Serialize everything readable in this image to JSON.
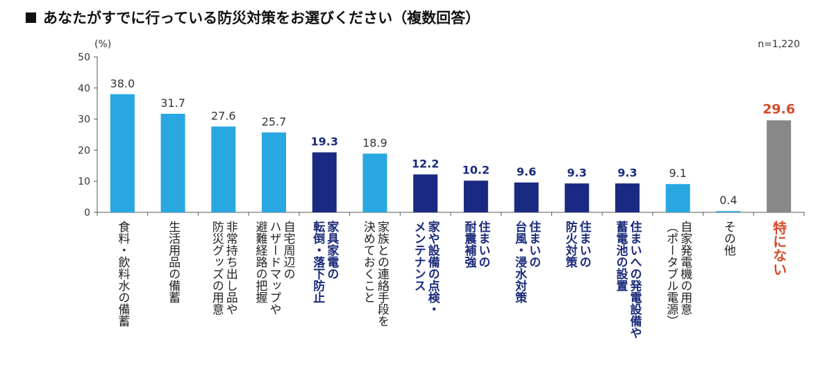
{
  "title": "あなたがすでに行っている防災対策をお選びください（複数回答）",
  "unit": "(%)",
  "sample": "n=1,220",
  "colors": {
    "light": "#29a7e1",
    "dark": "#1a2a82",
    "gray": "#888888",
    "accent": "#d64a2a"
  },
  "chart_data": {
    "type": "bar",
    "ylim": [
      0,
      50
    ],
    "yticks": [
      0,
      10,
      20,
      30,
      40,
      50
    ],
    "ylabel": "(%)",
    "grid": false,
    "categories": [
      {
        "lines": [
          "食料・飲料水の備蓄"
        ],
        "value": 38.0,
        "style": "light"
      },
      {
        "lines": [
          "生活用品の備蓄"
        ],
        "value": 31.7,
        "style": "light"
      },
      {
        "lines": [
          "非常持ち出し品や",
          "防災グッズの用意"
        ],
        "value": 27.6,
        "style": "light"
      },
      {
        "lines": [
          "自宅周辺の",
          "ハザードマップや",
          "避難経路の把握"
        ],
        "value": 25.7,
        "style": "light"
      },
      {
        "lines": [
          "家具家電の",
          "転倒・落下防止"
        ],
        "value": 19.3,
        "style": "dark"
      },
      {
        "lines": [
          "家族との連絡手段を",
          "決めておくこと"
        ],
        "value": 18.9,
        "style": "light"
      },
      {
        "lines": [
          "家や設備の点検・",
          "メンテナンス"
        ],
        "value": 12.2,
        "style": "dark"
      },
      {
        "lines": [
          "住まいの",
          "耐震補強"
        ],
        "value": 10.2,
        "style": "dark"
      },
      {
        "lines": [
          "住まいの",
          "台風・浸水対策"
        ],
        "value": 9.6,
        "style": "dark"
      },
      {
        "lines": [
          "住まいの",
          "防火対策"
        ],
        "value": 9.3,
        "style": "dark"
      },
      {
        "lines": [
          "住まいへの発電設備や",
          "蓄電池の設置"
        ],
        "value": 9.3,
        "style": "dark"
      },
      {
        "lines": [
          "自家発電機の用意",
          "（ポータブル電源）"
        ],
        "value": 9.1,
        "style": "light"
      },
      {
        "lines": [
          "その他"
        ],
        "value": 0.4,
        "style": "light"
      },
      {
        "lines": [
          "特にない"
        ],
        "value": 29.6,
        "style": "gray"
      }
    ]
  }
}
